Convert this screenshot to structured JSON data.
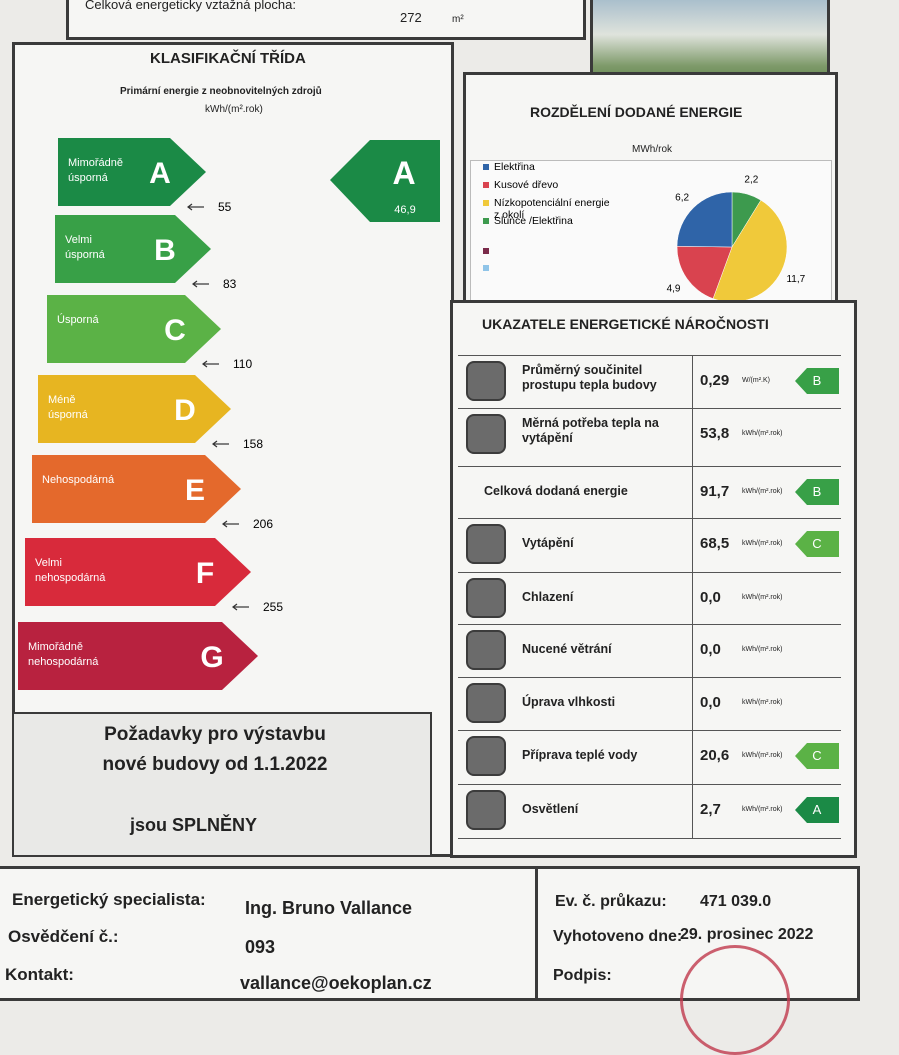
{
  "header": {
    "area_label": "Celková energeticky vztažná plocha:",
    "area_value": "272",
    "area_unit": "m²"
  },
  "classification": {
    "title": "KLASIFIKAČNÍ TŘÍDA",
    "subtitle": "Primární energie z neobnovitelných zdrojů",
    "unit": "kWh/(m².rok)",
    "classes": [
      {
        "letter": "A",
        "label": "Mimořádně úsporná",
        "threshold": "55",
        "color": "#1b8a46"
      },
      {
        "letter": "B",
        "label": "Velmi úsporná",
        "threshold": "83",
        "color": "#38a047"
      },
      {
        "letter": "C",
        "label": "Úsporná",
        "threshold": "110",
        "color": "#5bb246"
      },
      {
        "letter": "D",
        "label": "Méně úsporná",
        "threshold": "158",
        "color": "#e7b521"
      },
      {
        "letter": "E",
        "label": "Nehospodárná",
        "threshold": "206",
        "color": "#e4692c"
      },
      {
        "letter": "F",
        "label": "Velmi nehospodárná",
        "threshold": "255",
        "color": "#d82a3b"
      },
      {
        "letter": "G",
        "label": "Mimořádně nehospodárná",
        "color": "#b8223f"
      }
    ],
    "rating": {
      "letter": "A",
      "value": "46,9"
    },
    "requirement": {
      "text": "Požadavky pro výstavbu nové budovy od 1.1.2022",
      "result": "jsou SPLNĚNY"
    }
  },
  "energy_split": {
    "title": "ROZDĚLENÍ DODANÉ ENERGIE",
    "unit": "MWh/rok",
    "items": [
      {
        "name": "Elektřina",
        "color": "#2f64a8",
        "value": 6.2,
        "value_label": "6,2"
      },
      {
        "name": "Kusové dřevo",
        "color": "#d9434f",
        "value": 4.9,
        "value_label": "4,9"
      },
      {
        "name": "Nízkopotenciální energie z okolí",
        "color": "#f0c93a",
        "value": 11.7,
        "value_label": "11,7"
      },
      {
        "name": "Slunce /Elektřina",
        "color": "#3d9a4e",
        "value": 2.2,
        "value_label": "2,2"
      }
    ]
  },
  "indicators": {
    "title": "UKAZATELE ENERGETICKÉ NÁROČNOSTI",
    "rows": [
      {
        "label": "Průměrný součinitel prostupu tepla budovy",
        "value": "0,29",
        "unit": "W/(m².K)",
        "class": "B"
      },
      {
        "label": "Měrná potřeba tepla na vytápění",
        "value": "53,8",
        "unit": "kWh/(m².rok)"
      },
      {
        "label": "Celková dodaná energie",
        "value": "91,7",
        "unit": "kWh/(m².rok)",
        "class": "B"
      },
      {
        "label": "Vytápění",
        "value": "68,5",
        "unit": "kWh/(m².rok)",
        "class": "C"
      },
      {
        "label": "Chlazení",
        "value": "0,0",
        "unit": "kWh/(m².rok)"
      },
      {
        "label": "Nucené větrání",
        "value": "0,0",
        "unit": "kWh/(m².rok)"
      },
      {
        "label": "Úprava vlhkosti",
        "value": "0,0",
        "unit": "kWh/(m².rok)"
      },
      {
        "label": "Příprava teplé vody",
        "value": "20,6",
        "unit": "kWh/(m².rok)",
        "class": "C"
      },
      {
        "label": "Osvětlení",
        "value": "2,7",
        "unit": "kWh/(m².rok)",
        "class": "A"
      }
    ]
  },
  "footer": {
    "specialist_label": "Energetický specialista:",
    "specialist": "Ing. Bruno Vallance",
    "certificate_label": "Osvědčení č.:",
    "certificate": "093",
    "contact_label": "Kontakt:",
    "contact": "vallance@oekoplan.cz",
    "record_label": "Ev. č. průkazu:",
    "record": "471 039.0",
    "date_label": "Vyhotoveno dne:",
    "date": "29. prosinec 2022",
    "signature_label": "Podpis:"
  }
}
